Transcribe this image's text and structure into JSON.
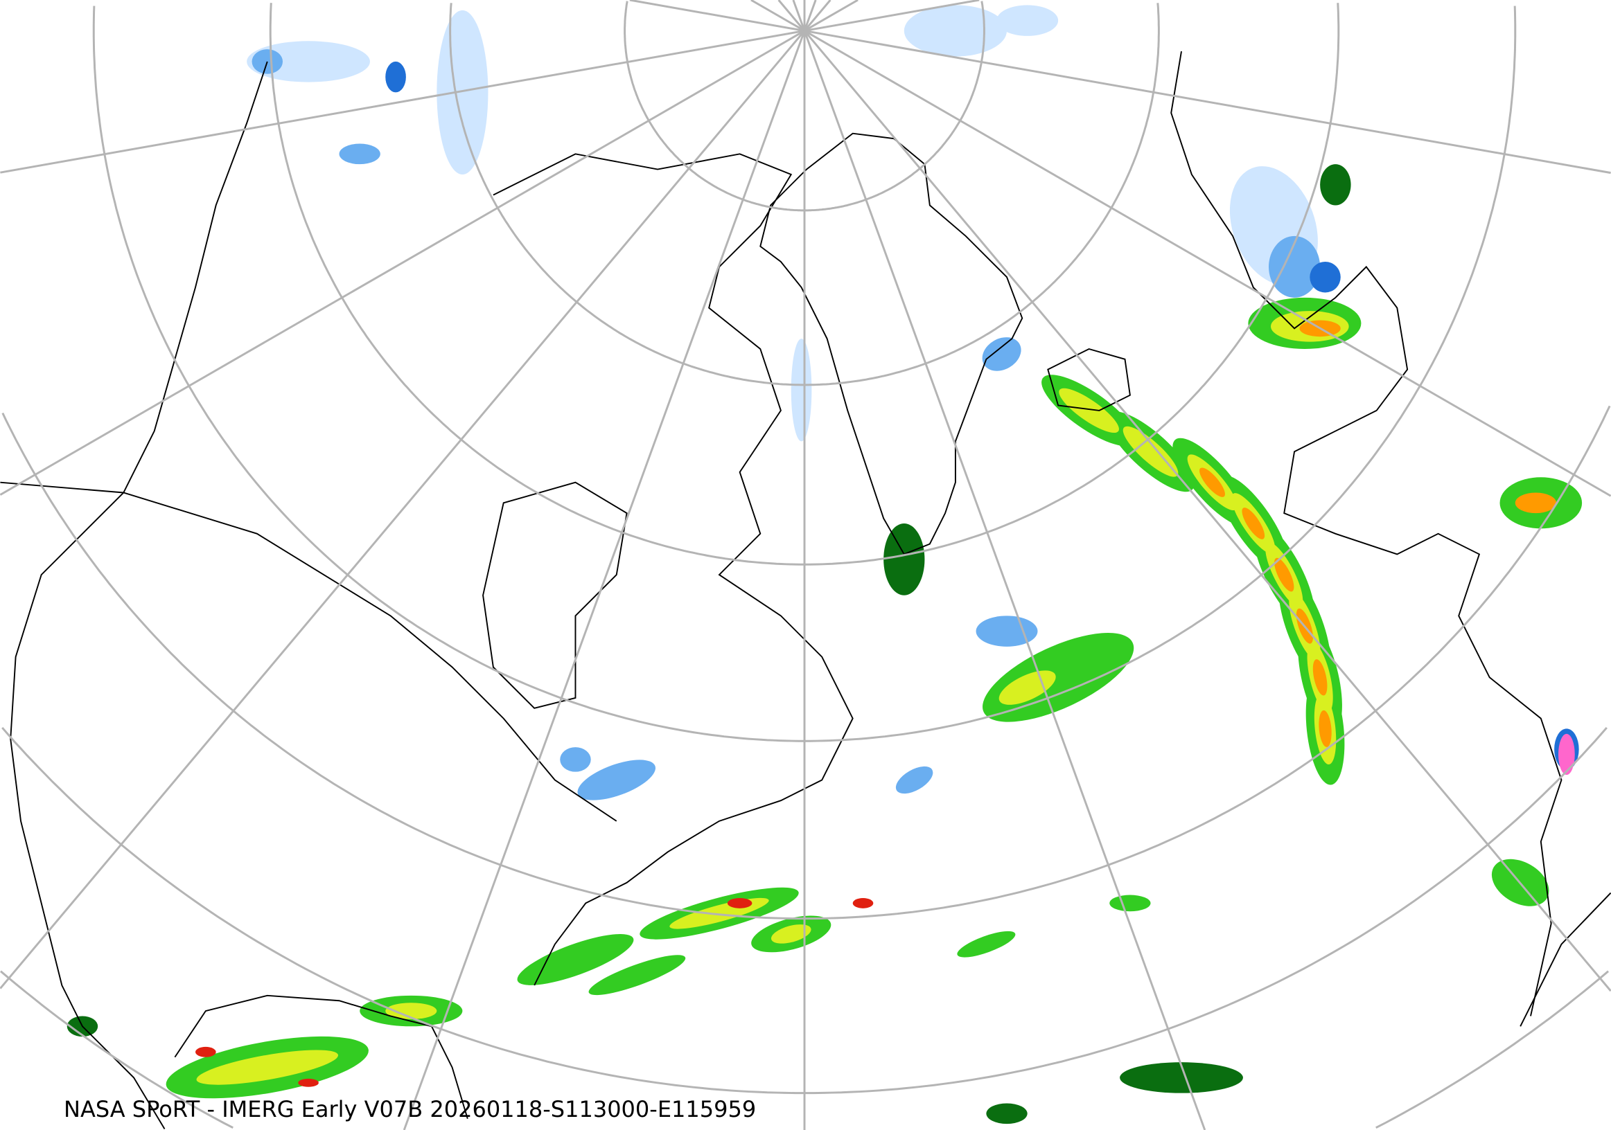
{
  "caption": "NASA SPoRT - IMERG Early V07B 20260118-S113000-E115959",
  "colors": {
    "graticule": "#b0b0b0",
    "coastline": "#000000",
    "snow_light": "#cfe6ff",
    "snow_medium": "#6aaef0",
    "snow_heavy": "#1f6fd6",
    "rain_light": "#0a6e10",
    "rain_medium": "#33cc22",
    "rain_moderate": "#d8f020",
    "rain_heavy": "#ff9a00",
    "rain_extreme": "#e02010",
    "mixed": "#ff66cc"
  }
}
